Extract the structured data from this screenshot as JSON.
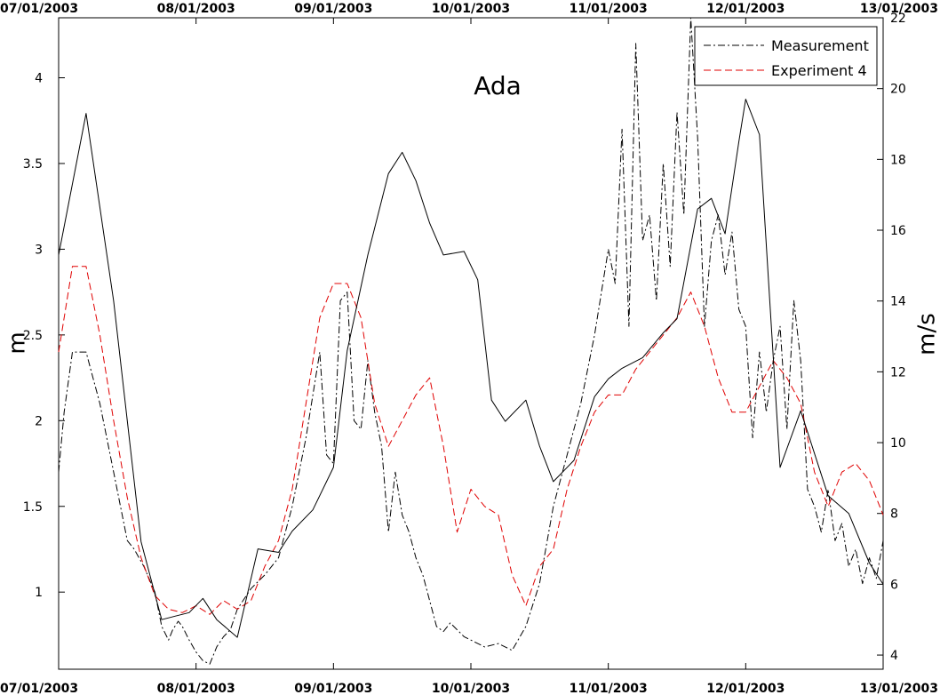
{
  "chart_data": {
    "type": "line",
    "title": "Ada",
    "ylabel_left": "m",
    "ylabel_right": "m/s",
    "x_tick_labels": [
      "07/01/2003",
      "08/01/2003",
      "09/01/2003",
      "10/01/2003",
      "11/01/2003",
      "12/01/2003",
      "13/01/2003"
    ],
    "xlim_days": [
      0,
      6
    ],
    "ylim_left": [
      0.55,
      4.35
    ],
    "ylim_right": [
      3.6,
      22
    ],
    "left_ticks": [
      1,
      1.5,
      2,
      2.5,
      3,
      3.5,
      4
    ],
    "right_ticks": [
      4,
      6,
      8,
      10,
      12,
      14,
      16,
      18,
      20,
      22
    ],
    "grid": false,
    "legend_position": "top-right",
    "legend": [
      "Measurement",
      "Experiment 4"
    ],
    "colors": {
      "measurement": "#000000",
      "experiment": "#e00000",
      "wind": "#000000"
    },
    "series": [
      {
        "name": "Measurement",
        "axis": "left",
        "style": "dash-dot",
        "x": [
          0.0,
          0.04,
          0.1,
          0.2,
          0.3,
          0.4,
          0.5,
          0.55,
          0.62,
          0.7,
          0.75,
          0.8,
          0.83,
          0.87,
          0.9,
          0.95,
          1.0,
          1.05,
          1.1,
          1.15,
          1.2,
          1.25,
          1.3,
          1.35,
          1.4,
          1.5,
          1.6,
          1.7,
          1.8,
          1.9,
          1.95,
          2.0,
          2.05,
          2.1,
          2.15,
          2.2,
          2.25,
          2.3,
          2.35,
          2.4,
          2.45,
          2.5,
          2.55,
          2.6,
          2.65,
          2.7,
          2.75,
          2.8,
          2.85,
          2.9,
          2.95,
          3.0,
          3.1,
          3.2,
          3.3,
          3.4,
          3.5,
          3.6,
          3.7,
          3.8,
          3.9,
          4.0,
          4.05,
          4.1,
          4.15,
          4.2,
          4.25,
          4.3,
          4.35,
          4.4,
          4.45,
          4.5,
          4.55,
          4.6,
          4.65,
          4.7,
          4.75,
          4.8,
          4.85,
          4.9,
          4.95,
          5.0,
          5.05,
          5.1,
          5.15,
          5.2,
          5.25,
          5.3,
          5.35,
          5.4,
          5.45,
          5.5,
          5.55,
          5.6,
          5.65,
          5.7,
          5.75,
          5.8,
          5.85,
          5.9,
          5.95,
          6.0
        ],
        "y": [
          1.7,
          2.05,
          2.4,
          2.4,
          2.1,
          1.7,
          1.3,
          1.25,
          1.15,
          1.0,
          0.8,
          0.72,
          0.78,
          0.83,
          0.8,
          0.72,
          0.65,
          0.6,
          0.58,
          0.68,
          0.74,
          0.78,
          0.9,
          0.96,
          1.02,
          1.1,
          1.2,
          1.5,
          1.9,
          2.4,
          1.8,
          1.75,
          2.7,
          2.75,
          2.0,
          1.95,
          2.35,
          2.05,
          1.85,
          1.35,
          1.7,
          1.45,
          1.35,
          1.2,
          1.1,
          0.95,
          0.8,
          0.77,
          0.82,
          0.78,
          0.74,
          0.72,
          0.68,
          0.7,
          0.66,
          0.8,
          1.05,
          1.5,
          1.8,
          2.1,
          2.5,
          3.0,
          2.8,
          3.7,
          2.55,
          4.2,
          3.05,
          3.2,
          2.7,
          3.5,
          2.9,
          3.8,
          3.2,
          4.35,
          3.65,
          2.55,
          3.05,
          3.2,
          2.85,
          3.1,
          2.65,
          2.55,
          1.9,
          2.4,
          2.05,
          2.35,
          2.55,
          1.95,
          2.7,
          2.35,
          1.6,
          1.5,
          1.35,
          1.6,
          1.3,
          1.4,
          1.15,
          1.25,
          1.05,
          1.2,
          1.08,
          1.3
        ]
      },
      {
        "name": "Experiment 4",
        "axis": "left",
        "style": "dashed",
        "x": [
          0.0,
          0.1,
          0.2,
          0.3,
          0.4,
          0.5,
          0.6,
          0.7,
          0.8,
          0.9,
          1.0,
          1.1,
          1.2,
          1.3,
          1.4,
          1.5,
          1.6,
          1.7,
          1.8,
          1.9,
          2.0,
          2.1,
          2.2,
          2.3,
          2.4,
          2.5,
          2.6,
          2.7,
          2.8,
          2.9,
          3.0,
          3.1,
          3.2,
          3.3,
          3.4,
          3.5,
          3.6,
          3.7,
          3.8,
          3.9,
          4.0,
          4.1,
          4.2,
          4.3,
          4.4,
          4.5,
          4.6,
          4.7,
          4.8,
          4.9,
          5.0,
          5.1,
          5.2,
          5.3,
          5.4,
          5.5,
          5.6,
          5.7,
          5.8,
          5.9,
          6.0
        ],
        "y": [
          2.4,
          2.9,
          2.9,
          2.5,
          2.0,
          1.55,
          1.2,
          0.98,
          0.9,
          0.88,
          0.92,
          0.87,
          0.95,
          0.9,
          0.95,
          1.15,
          1.3,
          1.6,
          2.1,
          2.6,
          2.8,
          2.8,
          2.6,
          2.1,
          1.85,
          2.0,
          2.15,
          2.25,
          1.85,
          1.35,
          1.6,
          1.5,
          1.45,
          1.1,
          0.92,
          1.15,
          1.25,
          1.6,
          1.85,
          2.05,
          2.15,
          2.15,
          2.3,
          2.4,
          2.5,
          2.6,
          2.75,
          2.55,
          2.25,
          2.05,
          2.05,
          2.2,
          2.35,
          2.25,
          2.1,
          1.7,
          1.5,
          1.7,
          1.75,
          1.65,
          1.45
        ]
      },
      {
        "name": "",
        "axis": "right",
        "style": "solid",
        "x": [
          0.0,
          0.2,
          0.4,
          0.6,
          0.75,
          0.85,
          0.95,
          1.05,
          1.15,
          1.3,
          1.45,
          1.6,
          1.7,
          1.85,
          2.0,
          2.1,
          2.25,
          2.4,
          2.5,
          2.6,
          2.7,
          2.8,
          2.95,
          3.05,
          3.15,
          3.25,
          3.4,
          3.5,
          3.6,
          3.75,
          3.9,
          4.0,
          4.1,
          4.25,
          4.4,
          4.5,
          4.65,
          4.75,
          4.85,
          4.95,
          5.0,
          5.1,
          5.25,
          5.4,
          5.6,
          5.75,
          5.9,
          6.0
        ],
        "y": [
          15.3,
          19.3,
          14.0,
          7.2,
          5.0,
          5.1,
          5.2,
          5.6,
          5.0,
          4.5,
          7.0,
          6.9,
          7.5,
          8.1,
          9.3,
          12.6,
          15.3,
          17.6,
          18.2,
          17.4,
          16.2,
          15.3,
          15.4,
          14.6,
          11.2,
          10.6,
          11.2,
          9.9,
          8.9,
          9.5,
          11.3,
          11.8,
          12.1,
          12.4,
          13.1,
          13.5,
          16.6,
          16.9,
          15.9,
          18.5,
          19.7,
          18.7,
          9.3,
          10.9,
          8.5,
          8.0,
          6.6,
          6.0
        ]
      }
    ]
  }
}
